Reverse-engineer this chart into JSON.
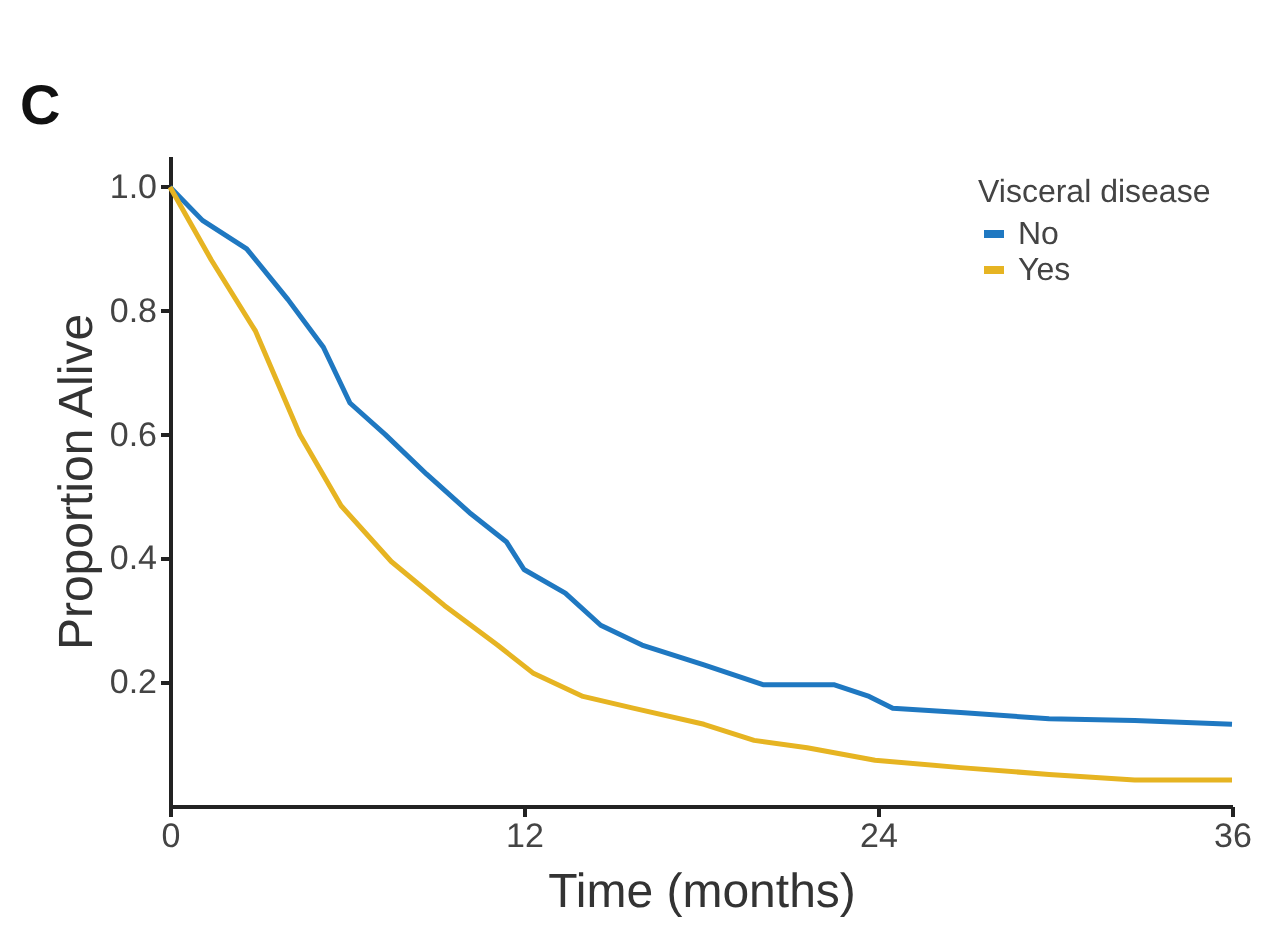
{
  "chart_data": {
    "type": "line",
    "xlabel": "Time (months)",
    "ylabel": "Proportion Alive",
    "legend_title": "Visceral disease",
    "annotations": [
      "C"
    ],
    "xlim": [
      0,
      36
    ],
    "xticks": [
      0,
      12,
      24,
      36
    ],
    "ylim": [
      0,
      1.05
    ],
    "yticks": [
      0.2,
      0.4,
      0.6,
      0.8,
      {
        "value": 1,
        "label": "1.0"
      }
    ],
    "grid": false,
    "legend": "top right",
    "marker": "none",
    "line_style": "solid",
    "series": [
      {
        "name": "No",
        "color": "#1f78c1",
        "x": [
          0,
          1.1,
          2.6,
          4.0,
          5.2,
          6.1,
          7.3,
          8.7,
          10.2,
          11.4,
          12.0,
          13.4,
          14.6,
          16.0,
          18.1,
          20.1,
          22.5,
          23.7,
          24.5,
          26.8,
          29.8,
          32.7,
          36
        ],
        "values": [
          1.0,
          0.946,
          0.9,
          0.818,
          0.741,
          0.651,
          0.6,
          0.536,
          0.472,
          0.427,
          0.382,
          0.344,
          0.292,
          0.26,
          0.228,
          0.196,
          0.196,
          0.177,
          0.158,
          0.151,
          0.141,
          0.138,
          0.132
        ]
      },
      {
        "name": "Yes",
        "color": "#e6b422",
        "x": [
          0,
          1.4,
          2.9,
          4.4,
          5.8,
          7.5,
          9.3,
          11.1,
          12.3,
          14.0,
          15.7,
          18.1,
          19.8,
          21.6,
          23.9,
          26.8,
          29.8,
          32.7,
          36
        ],
        "values": [
          1.0,
          0.882,
          0.767,
          0.6,
          0.485,
          0.395,
          0.324,
          0.26,
          0.215,
          0.177,
          0.158,
          0.132,
          0.106,
          0.094,
          0.074,
          0.062,
          0.051,
          0.042,
          0.042
        ]
      }
    ]
  }
}
